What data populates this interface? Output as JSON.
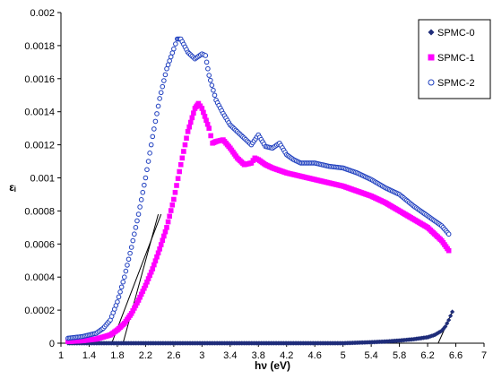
{
  "chart_data": {
    "type": "scatter",
    "title": "",
    "xlabel": "hν (eV)",
    "ylabel": "εᵢ",
    "xlim": [
      1,
      7
    ],
    "ylim": [
      0,
      0.002
    ],
    "xticks": [
      1,
      1.4,
      1.8,
      2.2,
      2.6,
      3,
      3.4,
      3.8,
      4.2,
      4.6,
      5,
      5.4,
      5.8,
      6.2,
      6.6,
      7
    ],
    "xtick_labels": [
      "1",
      "1.4",
      "1.8",
      "2.2",
      "2.6",
      "3",
      "3.4",
      "3.8",
      "4.2",
      "4.6",
      "5",
      "5.4",
      "5.8",
      "6.2",
      "6.6",
      "7"
    ],
    "yticks": [
      0,
      0.0002,
      0.0004,
      0.0006,
      0.0008,
      0.001,
      0.0012,
      0.0014,
      0.0016,
      0.0018,
      0.002
    ],
    "ytick_labels": [
      "0",
      "0.0002",
      "0.0004",
      "0.0006",
      "0.0008",
      "0.001",
      "0.0012",
      "0.0014",
      "0.0016",
      "0.0018",
      "0.002"
    ],
    "grid": false,
    "legend_position": "top-right",
    "series": [
      {
        "name": "SPMC-0",
        "marker": "diamond",
        "color": "#1f2d7a",
        "points": [
          [
            1.1,
            0.0
          ],
          [
            1.5,
            0.0
          ],
          [
            2.0,
            0.0
          ],
          [
            2.5,
            0.0
          ],
          [
            3.0,
            0.0
          ],
          [
            3.5,
            0.0
          ],
          [
            4.0,
            0.0
          ],
          [
            4.5,
            0.0
          ],
          [
            5.0,
            0.0
          ],
          [
            5.2,
            3e-06
          ],
          [
            5.4,
            6e-06
          ],
          [
            5.6,
            1e-05
          ],
          [
            5.8,
            1.6e-05
          ],
          [
            6.0,
            2.4e-05
          ],
          [
            6.2,
            3.6e-05
          ],
          [
            6.3,
            5e-05
          ],
          [
            6.4,
            7.5e-05
          ],
          [
            6.45,
            0.0001
          ],
          [
            6.5,
            0.00014
          ],
          [
            6.55,
            0.00019
          ]
        ]
      },
      {
        "name": "SPMC-1",
        "marker": "square",
        "color": "#ff00ff",
        "points": [
          [
            1.1,
            1e-05
          ],
          [
            1.3,
            1.5e-05
          ],
          [
            1.5,
            2.5e-05
          ],
          [
            1.7,
            5e-05
          ],
          [
            1.8,
            8e-05
          ],
          [
            1.9,
            0.00012
          ],
          [
            2.0,
            0.00018
          ],
          [
            2.1,
            0.00026
          ],
          [
            2.2,
            0.00035
          ],
          [
            2.3,
            0.00045
          ],
          [
            2.4,
            0.00057
          ],
          [
            2.5,
            0.0007
          ],
          [
            2.6,
            0.00087
          ],
          [
            2.7,
            0.00108
          ],
          [
            2.8,
            0.00128
          ],
          [
            2.9,
            0.00142
          ],
          [
            2.95,
            0.00145
          ],
          [
            3.0,
            0.00142
          ],
          [
            3.1,
            0.0013
          ],
          [
            3.15,
            0.00121
          ],
          [
            3.2,
            0.00122
          ],
          [
            3.3,
            0.00123
          ],
          [
            3.4,
            0.00118
          ],
          [
            3.5,
            0.00112
          ],
          [
            3.6,
            0.00108
          ],
          [
            3.7,
            0.00109
          ],
          [
            3.75,
            0.00112
          ],
          [
            3.8,
            0.00111
          ],
          [
            3.9,
            0.00108
          ],
          [
            4.0,
            0.00106
          ],
          [
            4.2,
            0.00103
          ],
          [
            4.4,
            0.00101
          ],
          [
            4.6,
            0.00099
          ],
          [
            4.8,
            0.00097
          ],
          [
            5.0,
            0.00095
          ],
          [
            5.2,
            0.00092
          ],
          [
            5.4,
            0.00089
          ],
          [
            5.6,
            0.00085
          ],
          [
            5.8,
            0.0008
          ],
          [
            6.0,
            0.00075
          ],
          [
            6.2,
            0.0007
          ],
          [
            6.4,
            0.00062
          ],
          [
            6.5,
            0.00056
          ]
        ]
      },
      {
        "name": "SPMC-2",
        "marker": "circle",
        "color": "#1f3fbf",
        "points": [
          [
            1.1,
            3e-05
          ],
          [
            1.3,
            4e-05
          ],
          [
            1.5,
            6e-05
          ],
          [
            1.6,
            9e-05
          ],
          [
            1.7,
            0.00014
          ],
          [
            1.8,
            0.00025
          ],
          [
            1.9,
            0.0004
          ],
          [
            2.0,
            0.00058
          ],
          [
            2.1,
            0.00078
          ],
          [
            2.2,
            0.001
          ],
          [
            2.3,
            0.00125
          ],
          [
            2.4,
            0.00148
          ],
          [
            2.5,
            0.00166
          ],
          [
            2.6,
            0.00178
          ],
          [
            2.65,
            0.00184
          ],
          [
            2.7,
            0.00184
          ],
          [
            2.8,
            0.00176
          ],
          [
            2.9,
            0.00172
          ],
          [
            3.0,
            0.00175
          ],
          [
            3.05,
            0.00174
          ],
          [
            3.1,
            0.00162
          ],
          [
            3.2,
            0.00147
          ],
          [
            3.3,
            0.00139
          ],
          [
            3.4,
            0.00132
          ],
          [
            3.5,
            0.00128
          ],
          [
            3.6,
            0.00124
          ],
          [
            3.7,
            0.0012
          ],
          [
            3.8,
            0.00126
          ],
          [
            3.9,
            0.00119
          ],
          [
            4.0,
            0.00118
          ],
          [
            4.1,
            0.00121
          ],
          [
            4.2,
            0.00114
          ],
          [
            4.3,
            0.00111
          ],
          [
            4.4,
            0.00109
          ],
          [
            4.6,
            0.00109
          ],
          [
            4.8,
            0.00107
          ],
          [
            5.0,
            0.00106
          ],
          [
            5.2,
            0.00103
          ],
          [
            5.4,
            0.00099
          ],
          [
            5.6,
            0.00094
          ],
          [
            5.8,
            0.0009
          ],
          [
            6.0,
            0.00083
          ],
          [
            6.2,
            0.00077
          ],
          [
            6.4,
            0.00071
          ],
          [
            6.5,
            0.00066
          ]
        ]
      }
    ],
    "fit_lines": [
      {
        "x": [
          1.72,
          2.42
        ],
        "y": [
          0.0,
          0.00078
        ]
      },
      {
        "x": [
          1.88,
          2.38
        ],
        "y": [
          0.0,
          0.00078
        ]
      },
      {
        "x": [
          6.35,
          6.55
        ],
        "y": [
          0.0,
          0.00019
        ]
      }
    ]
  }
}
